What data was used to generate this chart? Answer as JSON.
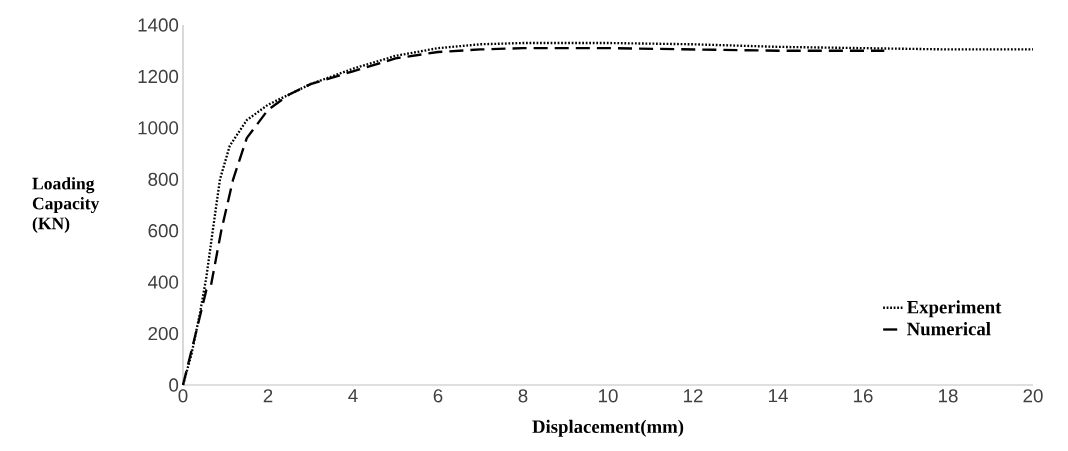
{
  "chart_data": {
    "type": "line",
    "xlabel": "Displacement(mm)",
    "ylabel": "Loading Capacity (KN)",
    "xlim": [
      0,
      20
    ],
    "ylim": [
      0,
      1400
    ],
    "xticks": [
      0,
      2,
      4,
      6,
      8,
      10,
      12,
      14,
      16,
      18,
      20
    ],
    "yticks": [
      0,
      200,
      400,
      600,
      800,
      1000,
      1200,
      1400
    ],
    "legend": "bottom right",
    "grid": false,
    "series": [
      {
        "name": "Experiment",
        "color": "#000000",
        "line_style": "dotted",
        "x": [
          0,
          0.2,
          0.4,
          0.55,
          0.7,
          0.87,
          1.1,
          1.5,
          2,
          3,
          4,
          5,
          6,
          7,
          8,
          10,
          12,
          14,
          16,
          18,
          20
        ],
        "values": [
          0,
          120,
          280,
          420,
          600,
          800,
          930,
          1030,
          1090,
          1170,
          1230,
          1280,
          1310,
          1325,
          1330,
          1330,
          1325,
          1315,
          1310,
          1305,
          1305
        ]
      },
      {
        "name": "Numerical",
        "color": "#000000",
        "line_style": "dashed",
        "x": [
          0,
          0.3,
          0.55,
          0.65,
          0.9,
          1.18,
          1.5,
          2,
          2.5,
          3,
          4,
          5,
          6,
          7,
          8,
          10,
          12,
          14,
          16,
          16.5
        ],
        "values": [
          0,
          200,
          370,
          380,
          600,
          800,
          960,
          1070,
          1130,
          1170,
          1220,
          1270,
          1295,
          1305,
          1310,
          1310,
          1305,
          1300,
          1300,
          1300
        ]
      }
    ]
  }
}
